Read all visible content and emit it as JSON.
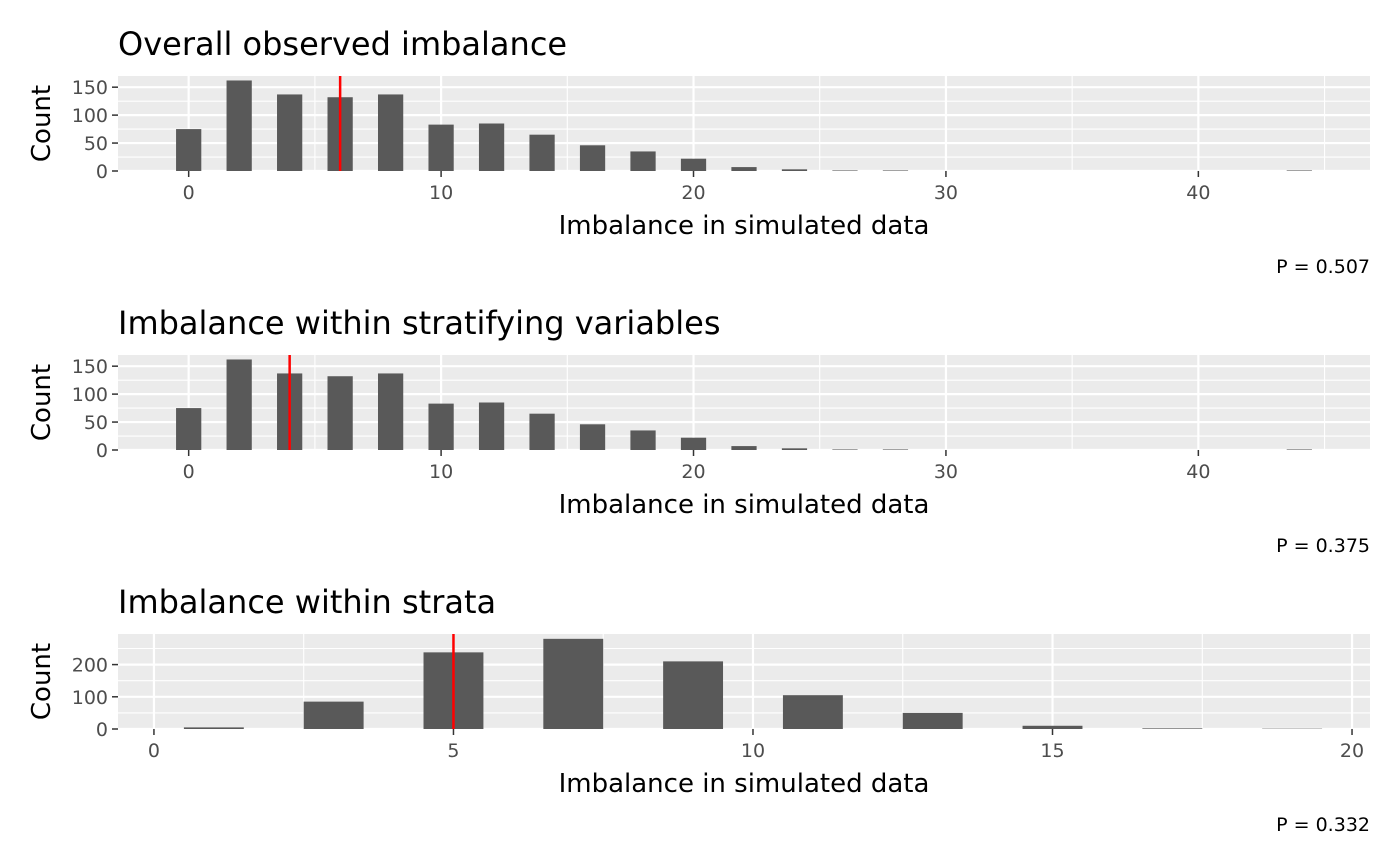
{
  "chart_data": [
    {
      "type": "bar",
      "title": "Overall observed imbalance",
      "xlabel": "Imbalance in simulated data",
      "ylabel": "Count",
      "caption": "P = 0.507",
      "x": [
        0,
        2,
        4,
        6,
        8,
        10,
        12,
        14,
        16,
        18,
        20,
        22,
        24,
        26,
        28,
        44
      ],
      "values": [
        75,
        162,
        137,
        132,
        137,
        83,
        85,
        65,
        46,
        35,
        22,
        7,
        3,
        1,
        1,
        1
      ],
      "xlim": [
        -2.8,
        46.8
      ],
      "ylim": [
        0,
        170
      ],
      "xticks": [
        0,
        10,
        20,
        30,
        40
      ],
      "yticks": [
        0,
        50,
        100,
        150
      ],
      "observed": 6,
      "bar_width": 1.0,
      "grid": true,
      "colors": {
        "bar": "#595959",
        "observed_line": "#ff0000",
        "panel": "#ebebeb",
        "grid": "#ffffff"
      }
    },
    {
      "type": "bar",
      "title": "Imbalance within stratifying variables",
      "xlabel": "Imbalance in simulated data",
      "ylabel": "Count",
      "caption": "P = 0.375",
      "x": [
        0,
        2,
        4,
        6,
        8,
        10,
        12,
        14,
        16,
        18,
        20,
        22,
        24,
        26,
        28,
        44
      ],
      "values": [
        75,
        162,
        137,
        132,
        137,
        83,
        85,
        65,
        46,
        35,
        22,
        7,
        3,
        1,
        1,
        1
      ],
      "xlim": [
        -2.8,
        46.8
      ],
      "ylim": [
        0,
        170
      ],
      "xticks": [
        0,
        10,
        20,
        30,
        40
      ],
      "yticks": [
        0,
        50,
        100,
        150
      ],
      "observed": 4,
      "bar_width": 1.0,
      "grid": true,
      "colors": {
        "bar": "#595959",
        "observed_line": "#ff0000",
        "panel": "#ebebeb",
        "grid": "#ffffff"
      }
    },
    {
      "type": "bar",
      "title": "Imbalance within strata",
      "xlabel": "Imbalance in simulated data",
      "ylabel": "Count",
      "caption": "P = 0.332",
      "x": [
        1,
        3,
        5,
        7,
        9,
        11,
        13,
        15,
        17,
        19
      ],
      "values": [
        5,
        85,
        238,
        280,
        210,
        105,
        50,
        10,
        2,
        1
      ],
      "xlim": [
        -0.6,
        20.3
      ],
      "ylim": [
        0,
        295
      ],
      "xticks": [
        0,
        5,
        10,
        15,
        20
      ],
      "yticks": [
        0,
        100,
        200
      ],
      "observed": 5,
      "bar_width": 1.0,
      "grid": true,
      "colors": {
        "bar": "#595959",
        "observed_line": "#ff0000",
        "panel": "#ebebeb",
        "grid": "#ffffff"
      }
    }
  ]
}
